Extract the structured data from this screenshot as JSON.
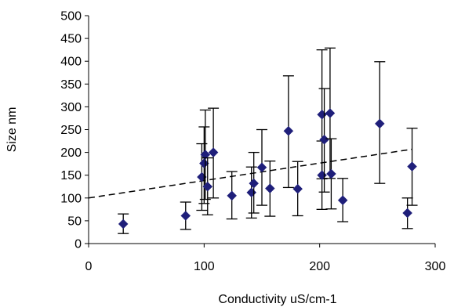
{
  "chart_data": {
    "type": "scatter",
    "title": "",
    "xlabel": "Conductivity uS/cm-1",
    "ylabel": "Size nm",
    "xlim": [
      0,
      300
    ],
    "ylim": [
      0,
      500
    ],
    "xticks": [
      0,
      100,
      200,
      300
    ],
    "yticks": [
      0,
      50,
      100,
      150,
      200,
      250,
      300,
      350,
      400,
      450,
      500
    ],
    "grid": false,
    "legend": "none",
    "marker": "diamond",
    "marker_color": "#1f1f7a",
    "points": [
      {
        "x": 30,
        "y": 43,
        "err_low": 22,
        "err_high": 65
      },
      {
        "x": 84,
        "y": 61,
        "err_low": 31,
        "err_high": 91
      },
      {
        "x": 98,
        "y": 146,
        "err_low": 73,
        "err_high": 219
      },
      {
        "x": 100,
        "y": 176,
        "err_low": 88,
        "err_high": 256
      },
      {
        "x": 101,
        "y": 195,
        "err_low": 97,
        "err_high": 293
      },
      {
        "x": 103,
        "y": 125,
        "err_low": 63,
        "err_high": 188
      },
      {
        "x": 108,
        "y": 200,
        "err_low": 100,
        "err_high": 297
      },
      {
        "x": 124,
        "y": 105,
        "err_low": 54,
        "err_high": 158
      },
      {
        "x": 141,
        "y": 112,
        "err_low": 56,
        "err_high": 168
      },
      {
        "x": 143,
        "y": 132,
        "err_low": 67,
        "err_high": 200
      },
      {
        "x": 150,
        "y": 167,
        "err_low": 84,
        "err_high": 250
      },
      {
        "x": 157,
        "y": 121,
        "err_low": 60,
        "err_high": 181
      },
      {
        "x": 173,
        "y": 247,
        "err_low": 123,
        "err_high": 368
      },
      {
        "x": 181,
        "y": 120,
        "err_low": 61,
        "err_high": 180
      },
      {
        "x": 202,
        "y": 283,
        "err_low": 142,
        "err_high": 425
      },
      {
        "x": 202,
        "y": 150,
        "err_low": 75,
        "err_high": 225
      },
      {
        "x": 204,
        "y": 228,
        "err_low": 113,
        "err_high": 340
      },
      {
        "x": 209,
        "y": 286,
        "err_low": 143,
        "err_high": 429
      },
      {
        "x": 210,
        "y": 153,
        "err_low": 76,
        "err_high": 230
      },
      {
        "x": 220,
        "y": 95,
        "err_low": 48,
        "err_high": 143
      },
      {
        "x": 252,
        "y": 263,
        "err_low": 132,
        "err_high": 399
      },
      {
        "x": 276,
        "y": 67,
        "err_low": 33,
        "err_high": 100
      },
      {
        "x": 280,
        "y": 169,
        "err_low": 84,
        "err_high": 253
      }
    ],
    "trendline": {
      "style": "dashed",
      "x": [
        0,
        280
      ],
      "y": [
        100,
        207
      ]
    }
  }
}
